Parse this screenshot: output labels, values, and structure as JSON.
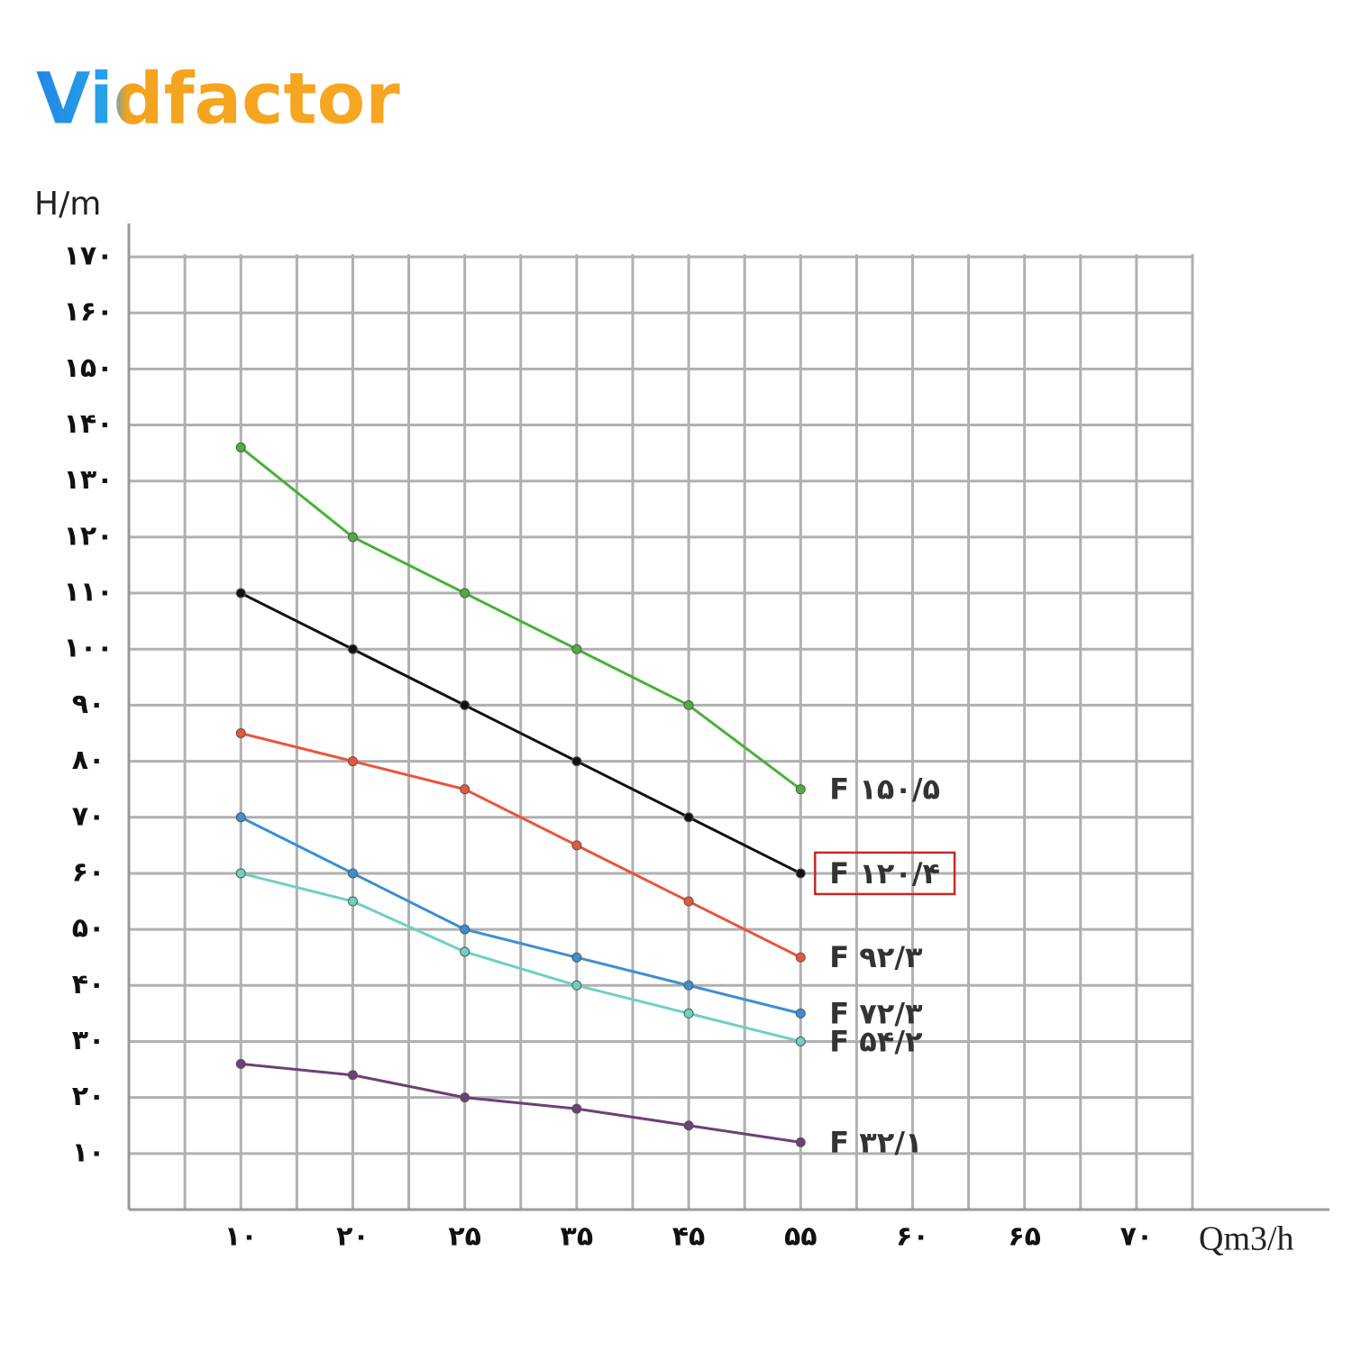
{
  "chart_data": {
    "type": "line",
    "logo": "Vidfactor",
    "y_label": "H/m",
    "x_label": "Qm3/h",
    "categories": [
      "۱۰",
      "۲۰",
      "۲۵",
      "۳۵",
      "۴۵",
      "۵۵",
      "۶۰",
      "۶۵",
      "۷۰"
    ],
    "ylim": [
      0,
      170
    ],
    "yticks": [
      {
        "value": 10,
        "label": "۱۰"
      },
      {
        "value": 20,
        "label": "۲۰"
      },
      {
        "value": 30,
        "label": "۳۰"
      },
      {
        "value": 40,
        "label": "۴۰"
      },
      {
        "value": 50,
        "label": "۵۰"
      },
      {
        "value": 60,
        "label": "۶۰"
      },
      {
        "value": 70,
        "label": "۷۰"
      },
      {
        "value": 80,
        "label": "۸۰"
      },
      {
        "value": 90,
        "label": "۹۰"
      },
      {
        "value": 100,
        "label": "۱۰۰"
      },
      {
        "value": 110,
        "label": "۱۱۰"
      },
      {
        "value": 120,
        "label": "۱۲۰"
      },
      {
        "value": 130,
        "label": "۱۳۰"
      },
      {
        "value": 140,
        "label": "۱۴۰"
      },
      {
        "value": 150,
        "label": "۱۵۰"
      },
      {
        "value": 160,
        "label": "۱۶۰"
      },
      {
        "value": 170,
        "label": "۱۷۰"
      }
    ],
    "grid": true,
    "series": [
      {
        "name": "F ۱۵۰/۵",
        "color": "#4caf3c",
        "values": [
          136,
          120,
          110,
          100,
          90,
          75,
          null,
          null,
          null
        ]
      },
      {
        "name": "F ۱۲۰/۴",
        "color": "#111111",
        "highlight": true,
        "values": [
          110,
          100,
          90,
          80,
          70,
          60,
          null,
          null,
          null
        ]
      },
      {
        "name": "F ۹۲/۳",
        "color": "#e8563a",
        "values": [
          85,
          80,
          75,
          65,
          55,
          45,
          null,
          null,
          null
        ]
      },
      {
        "name": "F ۷۲/۳",
        "color": "#3d8fd1",
        "values": [
          70,
          60,
          50,
          45,
          40,
          35,
          null,
          null,
          null
        ]
      },
      {
        "name": "F ۵۴/۲",
        "color": "#6fd0c0",
        "values": [
          60,
          55,
          46,
          40,
          35,
          30,
          null,
          null,
          null
        ]
      },
      {
        "name": "F ۳۲/۱",
        "color": "#6e3f78",
        "values": [
          26,
          24,
          20,
          18,
          15,
          12,
          null,
          null,
          null
        ]
      }
    ]
  }
}
